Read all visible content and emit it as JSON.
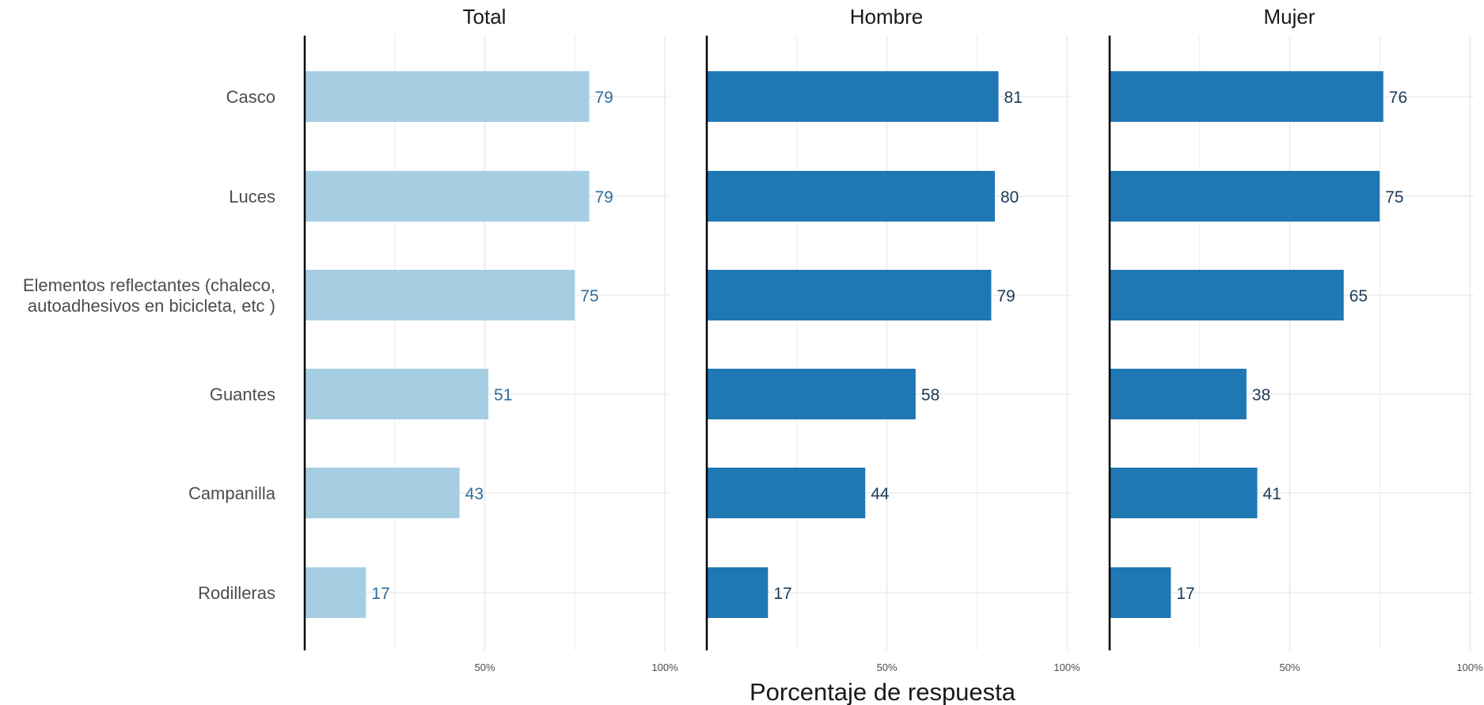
{
  "chart_data": {
    "type": "bar",
    "orientation": "horizontal",
    "facets": [
      "Total",
      "Hombre",
      "Mujer"
    ],
    "categories": [
      [
        "Casco"
      ],
      [
        "Luces"
      ],
      [
        "Elementos reflectantes (chaleco,",
        "autoadhesivos en bicicleta, etc )"
      ],
      [
        "Guantes"
      ],
      [
        "Campanilla"
      ],
      [
        "Rodilleras"
      ]
    ],
    "series": [
      {
        "facet": "Total",
        "values": [
          79,
          79,
          75,
          51,
          43,
          17
        ]
      },
      {
        "facet": "Hombre",
        "values": [
          81,
          80,
          79,
          58,
          44,
          17
        ]
      },
      {
        "facet": "Mujer",
        "values": [
          76,
          75,
          65,
          38,
          41,
          17
        ]
      }
    ],
    "xlabel": "Porcentaje de respuesta",
    "xticks": [
      "50%",
      "100%"
    ],
    "xlim": [
      0,
      100
    ],
    "grid": true,
    "legend": "none",
    "colors": {
      "Total": "#a6cee3",
      "Hombre": "#1f78b4",
      "Mujer": "#1f78b4",
      "label_Total": "#2e6e9e",
      "label_Hombre": "#1b3a57",
      "label_Mujer": "#1b3a57",
      "grid": "#ebebeb",
      "axis": "#000000"
    }
  }
}
